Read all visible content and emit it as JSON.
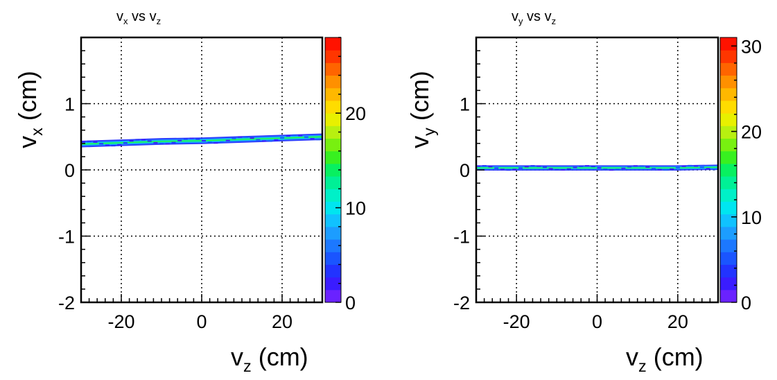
{
  "chart_data": [
    {
      "type": "heatmap",
      "title": {
        "main": "v",
        "main_sub": "x",
        "mid": " vs ",
        "end": "v",
        "end_sub": "z"
      },
      "xlabel": {
        "main": "v",
        "sub": "z",
        "rest": " (cm)"
      },
      "ylabel": {
        "main": "v",
        "sub": "x",
        "rest": " (cm)"
      },
      "xlim": [
        -30,
        30
      ],
      "ylim": [
        -2,
        2
      ],
      "x_ticks": [
        "-20",
        "0",
        "20"
      ],
      "x_tick_values": [
        -20,
        0,
        20
      ],
      "y_ticks": [
        "-2",
        "-1",
        "0",
        "1"
      ],
      "y_tick_values": [
        -2,
        -1,
        0,
        1
      ],
      "grid": true,
      "band": {
        "x": [
          -30,
          -20,
          -10,
          0,
          10,
          20,
          30
        ],
        "y": [
          0.39,
          0.41,
          0.43,
          0.44,
          0.46,
          0.48,
          0.5
        ],
        "width": 0.05
      },
      "colorbar": {
        "min": 0,
        "max": 28,
        "ticks": [
          "0",
          "10",
          "20"
        ],
        "tick_values": [
          0,
          10,
          20
        ]
      }
    },
    {
      "type": "heatmap",
      "title": {
        "main": "v",
        "main_sub": "y",
        "mid": " vs ",
        "end": "v",
        "end_sub": "z"
      },
      "xlabel": {
        "main": "v",
        "sub": "z",
        "rest": " (cm)"
      },
      "ylabel": {
        "main": "v",
        "sub": "y",
        "rest": " (cm)"
      },
      "xlim": [
        -30,
        30
      ],
      "ylim": [
        -2,
        2
      ],
      "x_ticks": [
        "-20",
        "0",
        "20"
      ],
      "x_tick_values": [
        -20,
        0,
        20
      ],
      "y_ticks": [
        "-2",
        "-1",
        "0",
        "1"
      ],
      "y_tick_values": [
        -2,
        -1,
        0,
        1
      ],
      "grid": true,
      "band": {
        "x": [
          -30,
          -20,
          -10,
          0,
          10,
          20,
          30
        ],
        "y": [
          0.03,
          0.03,
          0.03,
          0.03,
          0.03,
          0.03,
          0.04
        ],
        "width": 0.04
      },
      "colorbar": {
        "min": 0,
        "max": 31,
        "ticks": [
          "0",
          "10",
          "20",
          "30"
        ],
        "tick_values": [
          0,
          10,
          20,
          30
        ]
      }
    }
  ],
  "colors": {
    "palette": [
      "#6a22ff",
      "#3a1cff",
      "#2233ff",
      "#1a55ff",
      "#1c78ff",
      "#1c9dff",
      "#10c2ff",
      "#00e6f0",
      "#00f0c8",
      "#00f096",
      "#08f060",
      "#38f020",
      "#78f010",
      "#b8f010",
      "#e8f000",
      "#ffdc00",
      "#ffb800",
      "#ff9000",
      "#ff6400",
      "#ff3600",
      "#ff1200"
    ]
  }
}
